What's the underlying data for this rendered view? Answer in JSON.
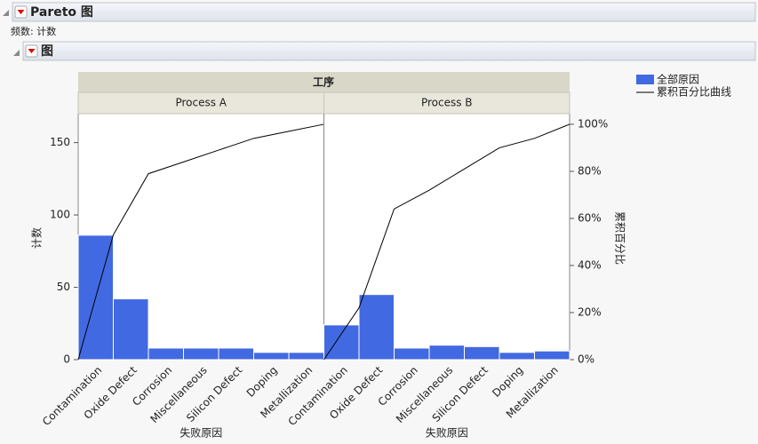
{
  "header": {
    "title": "Pareto 图",
    "frequency": "频数: 计数",
    "section": "图"
  },
  "chart_data": {
    "type": "pareto",
    "group_title": "工序",
    "categories": [
      "Contamination",
      "Oxide Defect",
      "Corrosion",
      "Miscellaneous",
      "Silicon Defect",
      "Doping",
      "Metallization"
    ],
    "xlabel": "失败原因",
    "ylabel": "计数",
    "y2label": "累积百分比",
    "ylim": [
      0,
      170
    ],
    "yticks": [
      0,
      50,
      100,
      150
    ],
    "y2lim": [
      0,
      104.5
    ],
    "y2ticks": [
      {
        "value": 0,
        "label": "0%"
      },
      {
        "value": 20,
        "label": "20%"
      },
      {
        "value": 40,
        "label": "40%"
      },
      {
        "value": 60,
        "label": "60%"
      },
      {
        "value": 80,
        "label": "80%"
      },
      {
        "value": 100,
        "label": "100%"
      }
    ],
    "series": [
      {
        "name": "全部原因",
        "color": "#4169e1"
      },
      {
        "name": "累积百分比曲线",
        "color": "#000000",
        "axis": "y2"
      }
    ],
    "panels": [
      {
        "name": "Process A",
        "values": [
          86,
          42,
          8,
          8,
          8,
          5,
          5
        ],
        "cumulative": [
          53,
          79,
          84,
          89,
          94,
          97,
          100
        ]
      },
      {
        "name": "Process B",
        "values": [
          24,
          45,
          8,
          10,
          9,
          5,
          6
        ],
        "cumulative": [
          22,
          64,
          72,
          81,
          90,
          94,
          100
        ]
      }
    ]
  }
}
